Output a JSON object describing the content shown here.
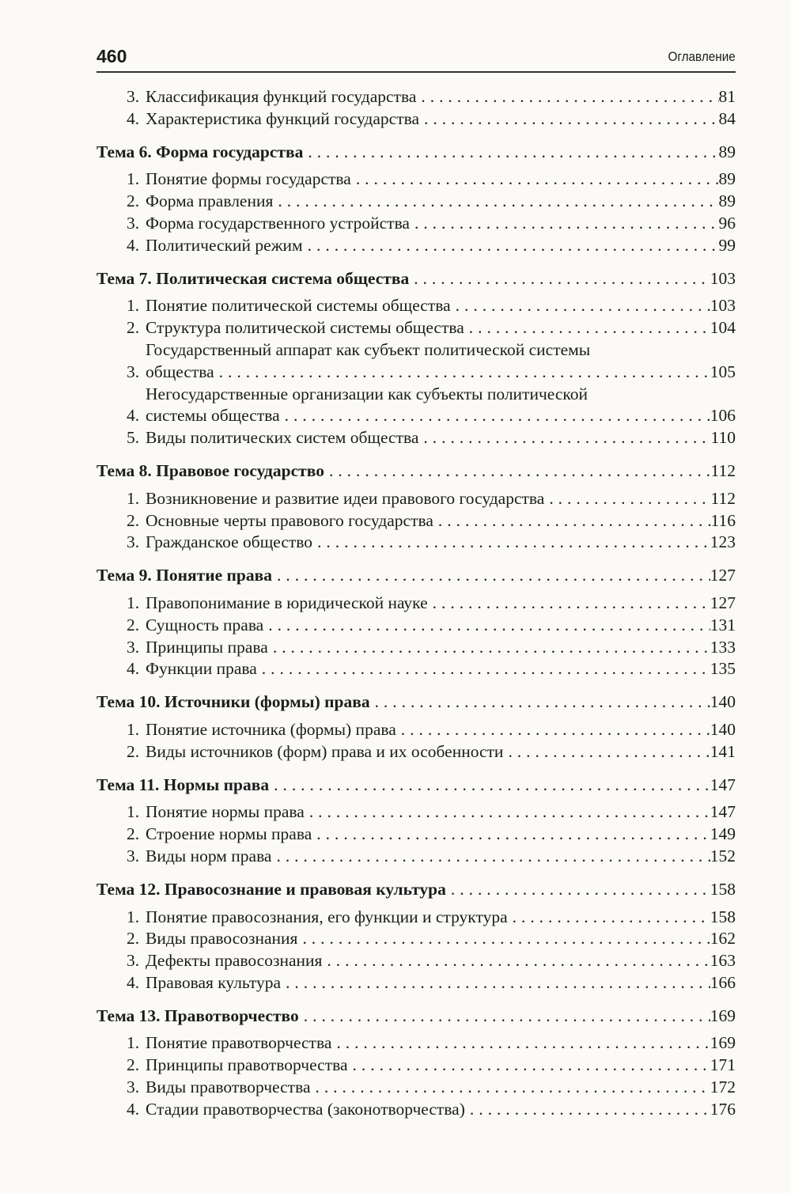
{
  "header": {
    "page_number": "460",
    "title": "Оглавление"
  },
  "toc": [
    {
      "type": "sub",
      "num": "3.",
      "lines": [
        "Классификация функций государства"
      ],
      "page": "81"
    },
    {
      "type": "sub",
      "num": "4.",
      "lines": [
        "Характеристика функций государства"
      ],
      "page": "84"
    },
    {
      "type": "head",
      "lines": [
        "Тема 6. Форма государства"
      ],
      "page": "89"
    },
    {
      "type": "sub",
      "num": "1.",
      "lines": [
        "Понятие формы государства"
      ],
      "page": "89"
    },
    {
      "type": "sub",
      "num": "2.",
      "lines": [
        "Форма правления"
      ],
      "page": "89"
    },
    {
      "type": "sub",
      "num": "3.",
      "lines": [
        "Форма государственного устройства"
      ],
      "page": "96"
    },
    {
      "type": "sub",
      "num": "4.",
      "lines": [
        "Политический режим"
      ],
      "page": "99"
    },
    {
      "type": "head",
      "lines": [
        "Тема 7. Политическая система общества"
      ],
      "page": "103"
    },
    {
      "type": "sub",
      "num": "1.",
      "lines": [
        "Понятие политической системы общества"
      ],
      "page": "103"
    },
    {
      "type": "sub",
      "num": "2.",
      "lines": [
        "Структура политической системы общества"
      ],
      "page": "104"
    },
    {
      "type": "sub",
      "num": "3.",
      "lines": [
        "Государственный аппарат как субъект политической системы",
        "общества"
      ],
      "page": "105"
    },
    {
      "type": "sub",
      "num": "4.",
      "lines": [
        "Негосударственные организации как субъекты политической",
        "системы общества"
      ],
      "page": "106"
    },
    {
      "type": "sub",
      "num": "5.",
      "lines": [
        "Виды политических систем общества"
      ],
      "page": "110"
    },
    {
      "type": "head",
      "lines": [
        "Тема 8. Правовое государство"
      ],
      "page": "112"
    },
    {
      "type": "sub",
      "num": "1.",
      "lines": [
        "Возникновение и развитие идеи правового государства"
      ],
      "page": "112"
    },
    {
      "type": "sub",
      "num": "2.",
      "lines": [
        "Основные черты правового государства"
      ],
      "page": "116"
    },
    {
      "type": "sub",
      "num": "3.",
      "lines": [
        "Гражданское общество"
      ],
      "page": "123"
    },
    {
      "type": "head",
      "lines": [
        "Тема 9. Понятие права"
      ],
      "page": "127"
    },
    {
      "type": "sub",
      "num": "1.",
      "lines": [
        "Правопонимание в юридической науке"
      ],
      "page": "127"
    },
    {
      "type": "sub",
      "num": "2.",
      "lines": [
        "Сущность права"
      ],
      "page": "131"
    },
    {
      "type": "sub",
      "num": "3.",
      "lines": [
        "Принципы права"
      ],
      "page": "133"
    },
    {
      "type": "sub",
      "num": "4.",
      "lines": [
        "Функции права"
      ],
      "page": "135"
    },
    {
      "type": "head",
      "lines": [
        "Тема 10. Источники (формы) права"
      ],
      "page": "140"
    },
    {
      "type": "sub",
      "num": "1.",
      "lines": [
        "Понятие источника (формы) права"
      ],
      "page": "140"
    },
    {
      "type": "sub",
      "num": "2.",
      "lines": [
        "Виды источников (форм) права и их особенности"
      ],
      "page": "141"
    },
    {
      "type": "head",
      "lines": [
        "Тема 11. Нормы права"
      ],
      "page": "147"
    },
    {
      "type": "sub",
      "num": "1.",
      "lines": [
        "Понятие нормы права"
      ],
      "page": "147"
    },
    {
      "type": "sub",
      "num": "2.",
      "lines": [
        "Строение нормы права"
      ],
      "page": "149"
    },
    {
      "type": "sub",
      "num": "3.",
      "lines": [
        "Виды норм права"
      ],
      "page": "152"
    },
    {
      "type": "head",
      "lines": [
        "Тема 12. Правосознание и правовая культура"
      ],
      "page": "158"
    },
    {
      "type": "sub",
      "num": "1.",
      "lines": [
        "Понятие правосознания, его функции и структура"
      ],
      "page": "158"
    },
    {
      "type": "sub",
      "num": "2.",
      "lines": [
        "Виды правосознания"
      ],
      "page": "162"
    },
    {
      "type": "sub",
      "num": "3.",
      "lines": [
        "Дефекты правосознания"
      ],
      "page": "163"
    },
    {
      "type": "sub",
      "num": "4.",
      "lines": [
        "Правовая культура"
      ],
      "page": "166"
    },
    {
      "type": "head",
      "lines": [
        "Тема 13. Правотворчество"
      ],
      "page": "169"
    },
    {
      "type": "sub",
      "num": "1.",
      "lines": [
        "Понятие правотворчества"
      ],
      "page": "169"
    },
    {
      "type": "sub",
      "num": "2.",
      "lines": [
        "Принципы правотворчества"
      ],
      "page": "171"
    },
    {
      "type": "sub",
      "num": "3.",
      "lines": [
        "Виды правотворчества"
      ],
      "page": "172"
    },
    {
      "type": "sub",
      "num": "4.",
      "lines": [
        "Стадии правотворчества (законотворчества)"
      ],
      "page": "176"
    }
  ]
}
